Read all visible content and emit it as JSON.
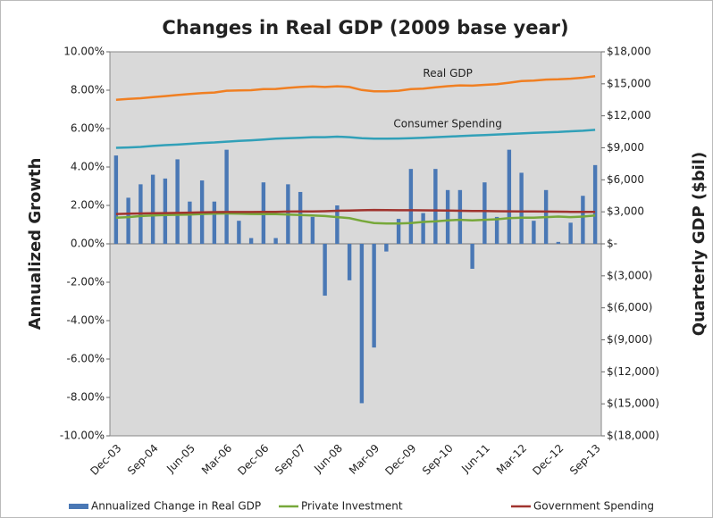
{
  "chart_data": {
    "type": "bar",
    "title": "Changes in Real GDP (2009 base year)",
    "y_label": "Annualized Growth",
    "y2_label": "Quarterly GDP ($bil)",
    "categories": [
      "Dec-03",
      null,
      null,
      "Sep-04",
      null,
      null,
      "Jun-05",
      null,
      null,
      "Mar-06",
      null,
      null,
      "Dec-06",
      null,
      null,
      "Sep-07",
      null,
      null,
      "Jun-08",
      null,
      null,
      "Mar-09",
      null,
      null,
      "Dec-09",
      null,
      null,
      "Sep-10",
      null,
      null,
      "Jun-11",
      null,
      null,
      "Mar-12",
      null,
      null,
      "Dec-12",
      null,
      null,
      "Sep-13"
    ],
    "ylim": [
      -10,
      10
    ],
    "yticks": [
      {
        "value": -10,
        "label": "-10.00%"
      },
      {
        "value": -8,
        "label": "-8.00%"
      },
      {
        "value": -6,
        "label": "-6.00%"
      },
      {
        "value": -4,
        "label": "-4.00%"
      },
      {
        "value": -2,
        "label": "-2.00%"
      },
      {
        "value": 0,
        "label": "0.00%"
      },
      {
        "value": 2,
        "label": "2.00%"
      },
      {
        "value": 4,
        "label": "4.00%"
      },
      {
        "value": 6,
        "label": "6.00%"
      },
      {
        "value": 8,
        "label": "8.00%"
      },
      {
        "value": 10,
        "label": "10.00%"
      }
    ],
    "y2lim": [
      -18000,
      18000
    ],
    "y2ticks": [
      {
        "value": -18000,
        "label": "$(18,000)"
      },
      {
        "value": -15000,
        "label": "$(15,000)"
      },
      {
        "value": -12000,
        "label": "$(12,000)"
      },
      {
        "value": -9000,
        "label": "$(9,000)"
      },
      {
        "value": -6000,
        "label": "$(6,000)"
      },
      {
        "value": -3000,
        "label": "$(3,000)"
      },
      {
        "value": 0,
        "label": "$-"
      },
      {
        "value": 3000,
        "label": "$3,000"
      },
      {
        "value": 6000,
        "label": "$6,000"
      },
      {
        "value": 9000,
        "label": "$9,000"
      },
      {
        "value": 12000,
        "label": "$12,000"
      },
      {
        "value": 15000,
        "label": "$15,000"
      },
      {
        "value": 18000,
        "label": "$18,000"
      }
    ],
    "legend": "bottom",
    "series": [
      {
        "name": "Annualized Change in Real GDP",
        "type": "bar",
        "axis": "y",
        "color": "#4a78b5",
        "in_legend": true,
        "values": [
          4.6,
          2.4,
          3.1,
          3.6,
          3.4,
          4.4,
          2.2,
          3.3,
          2.2,
          4.9,
          1.2,
          0.3,
          3.2,
          0.3,
          3.1,
          2.7,
          1.4,
          -2.7,
          2.0,
          -1.9,
          -8.3,
          -5.4,
          -0.4,
          1.3,
          3.9,
          1.6,
          3.9,
          2.8,
          2.8,
          -1.3,
          3.2,
          1.4,
          4.9,
          3.7,
          1.2,
          2.8,
          0.1,
          1.1,
          2.5,
          4.1
        ]
      },
      {
        "name": "Real GDP",
        "type": "line",
        "axis": "y2",
        "color": "#f07f22",
        "in_legend": false,
        "values": [
          13500,
          13580,
          13650,
          13750,
          13850,
          13950,
          14050,
          14120,
          14180,
          14350,
          14380,
          14400,
          14500,
          14520,
          14620,
          14700,
          14750,
          14700,
          14770,
          14700,
          14420,
          14300,
          14300,
          14350,
          14500,
          14550,
          14680,
          14780,
          14850,
          14830,
          14900,
          14960,
          15100,
          15250,
          15300,
          15400,
          15420,
          15480,
          15570,
          15720
        ]
      },
      {
        "name": "Consumer Spending",
        "type": "line",
        "axis": "y2",
        "color": "#31a0b8",
        "in_legend": false,
        "values": [
          9000,
          9030,
          9080,
          9180,
          9250,
          9300,
          9380,
          9450,
          9500,
          9580,
          9650,
          9700,
          9780,
          9850,
          9900,
          9950,
          10000,
          10000,
          10050,
          10000,
          9900,
          9850,
          9850,
          9870,
          9900,
          9950,
          10000,
          10050,
          10100,
          10150,
          10200,
          10250,
          10300,
          10350,
          10400,
          10450,
          10480,
          10550,
          10600,
          10680
        ]
      },
      {
        "name": "Private Investment",
        "type": "line",
        "axis": "y2",
        "color": "#77a83a",
        "in_legend": true,
        "values": [
          2450,
          2500,
          2600,
          2650,
          2700,
          2720,
          2750,
          2800,
          2820,
          2850,
          2820,
          2800,
          2780,
          2780,
          2750,
          2700,
          2650,
          2600,
          2500,
          2400,
          2150,
          1950,
          1900,
          1900,
          1950,
          2050,
          2100,
          2200,
          2250,
          2200,
          2250,
          2300,
          2400,
          2450,
          2450,
          2500,
          2550,
          2500,
          2550,
          2650
        ]
      },
      {
        "name": "Government Spending",
        "type": "line",
        "axis": "y2",
        "color": "#a0332e",
        "in_legend": true,
        "values": [
          2800,
          2820,
          2850,
          2870,
          2880,
          2900,
          2920,
          2950,
          2970,
          2980,
          2980,
          2980,
          2990,
          3000,
          3020,
          3030,
          3040,
          3060,
          3100,
          3120,
          3150,
          3170,
          3160,
          3150,
          3150,
          3140,
          3130,
          3120,
          3100,
          3080,
          3070,
          3060,
          3050,
          3040,
          3030,
          3020,
          3010,
          3000,
          3000,
          2990
        ]
      }
    ]
  }
}
